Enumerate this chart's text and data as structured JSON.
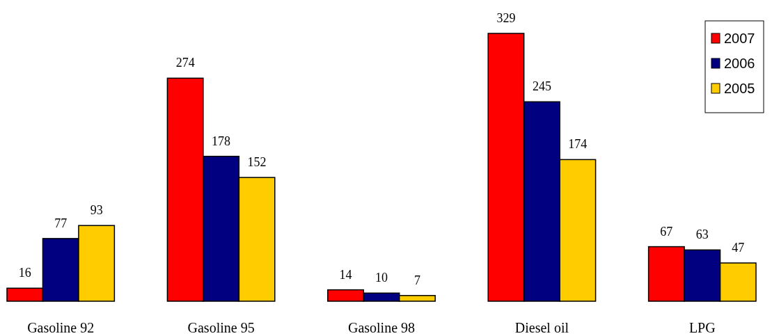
{
  "chart_data": {
    "type": "bar",
    "categories": [
      "Gasoline 92",
      "Gasoline 95",
      "Gasoline 98",
      "Diesel oil",
      "LPG"
    ],
    "series": [
      {
        "name": "2007",
        "color": "#ff0000",
        "values": [
          16,
          274,
          14,
          329,
          67
        ]
      },
      {
        "name": "2006",
        "color": "#000080",
        "values": [
          77,
          178,
          10,
          245,
          63
        ]
      },
      {
        "name": "2005",
        "color": "#ffcc00",
        "values": [
          93,
          152,
          7,
          174,
          47
        ]
      }
    ],
    "data_labels": true,
    "legend": "top right"
  }
}
